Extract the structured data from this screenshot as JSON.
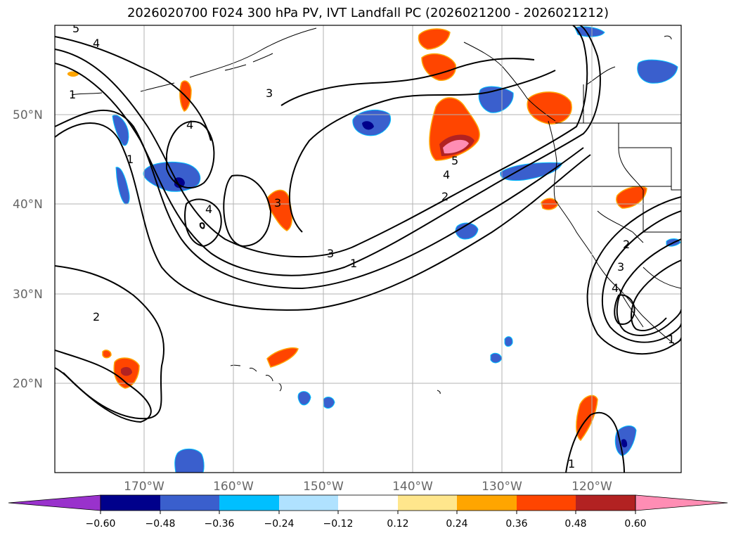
{
  "title": "2026020700 F024 300 hPa PV, IVT Landfall PC (2026021200 - 2026021212)",
  "map": {
    "lon_ticks": [
      {
        "value": -170,
        "label": "170°W"
      },
      {
        "value": -160,
        "label": "160°W"
      },
      {
        "value": -150,
        "label": "150°W"
      },
      {
        "value": -140,
        "label": "140°W"
      },
      {
        "value": -130,
        "label": "130°W"
      },
      {
        "value": -120,
        "label": "120°W"
      }
    ],
    "lat_ticks": [
      {
        "value": 20,
        "label": "20°N"
      },
      {
        "value": 30,
        "label": "30°N"
      },
      {
        "value": 40,
        "label": "40°N"
      },
      {
        "value": 50,
        "label": "50°N"
      }
    ],
    "extent": {
      "lon_min": -180,
      "lon_max": -110,
      "lat_min": 10,
      "lat_max": 60
    }
  },
  "colorbar": {
    "levels": [
      -0.6,
      -0.48,
      -0.36,
      -0.24,
      -0.12,
      0.12,
      0.24,
      0.36,
      0.48,
      0.6
    ],
    "labels": [
      "−0.60",
      "−0.48",
      "−0.36",
      "−0.24",
      "−0.12",
      "0.12",
      "0.24",
      "0.36",
      "0.48",
      "0.60"
    ],
    "colors": [
      "#9932cc",
      "#00008b",
      "#3a5fcd",
      "#00bfff",
      "#b0e2ff",
      "#ffffff",
      "#ffe68c",
      "#ffa500",
      "#ff4500",
      "#b22222",
      "#ff8db4"
    ]
  },
  "contour_labels": [
    "5",
    "4",
    "1",
    "3",
    "4",
    "1",
    "4",
    "3",
    "5",
    "4",
    "2",
    "3",
    "1",
    "2",
    "2",
    "3",
    "4",
    "1",
    "1"
  ]
}
